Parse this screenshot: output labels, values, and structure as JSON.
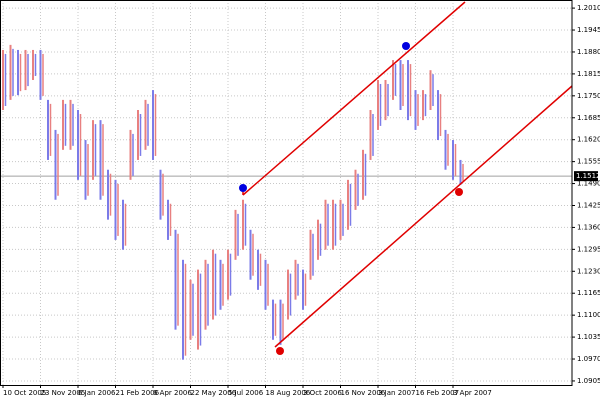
{
  "chart_data": {
    "type": "range-bar",
    "categories": [
      "10 Oct 2005",
      null,
      null,
      null,
      null,
      "23 Nov 2005",
      null,
      null,
      null,
      null,
      "6 Jan 2006",
      null,
      null,
      null,
      null,
      "21 Feb 2006",
      null,
      null,
      null,
      null,
      "6 Apr 2006",
      null,
      null,
      null,
      null,
      "22 May 2006",
      null,
      null,
      null,
      null,
      "5 Jul 2006",
      null,
      null,
      null,
      null,
      "18 Aug 2006",
      null,
      null,
      null,
      null,
      "3 Oct 2006",
      null,
      null,
      null,
      null,
      "16 Nov 2006",
      null,
      null,
      null,
      null,
      "3 Jan 2007",
      null,
      null,
      null,
      null,
      "16 Feb 2007",
      null,
      null,
      null,
      null,
      "3 Apr 2007",
      null
    ],
    "highs": [
      1.1886,
      1.1901,
      1.1886,
      1.1886,
      1.1886,
      1.1886,
      1.1738,
      1.1649,
      1.1738,
      1.1738,
      1.1708,
      1.1619,
      1.1678,
      1.1678,
      1.1531,
      1.1501,
      1.1442,
      1.1649,
      1.1708,
      1.1738,
      1.1767,
      1.1531,
      1.1442,
      1.1353,
      1.1264,
      1.1205,
      1.1235,
      1.1264,
      1.1294,
      1.1264,
      1.1294,
      1.1412,
      1.1442,
      1.1353,
      1.1294,
      1.1264,
      1.1146,
      1.1146,
      1.1235,
      1.1264,
      1.1235,
      1.1353,
      1.1383,
      1.1442,
      1.1442,
      1.1442,
      1.1501,
      1.1531,
      1.159,
      1.1708,
      1.1797,
      1.1797,
      1.1856,
      1.1856,
      1.1856,
      1.1767,
      1.1767,
      1.1826,
      1.1767,
      1.1649,
      1.1619,
      1.156
    ],
    "lows": [
      1.1708,
      1.1738,
      1.1752,
      1.1767,
      1.1797,
      1.1738,
      1.156,
      1.1442,
      1.159,
      1.159,
      1.1501,
      1.1442,
      1.1501,
      1.1442,
      1.1383,
      1.1323,
      1.1294,
      1.1501,
      1.156,
      1.159,
      1.156,
      1.1383,
      1.1323,
      1.1057,
      1.0968,
      1.1027,
      1.0998,
      1.1057,
      1.1087,
      1.1116,
      1.1146,
      1.1264,
      1.1294,
      1.1205,
      1.1175,
      1.1116,
      1.1027,
      1.1012,
      1.1087,
      1.1146,
      1.1116,
      1.1205,
      1.1264,
      1.1294,
      1.1294,
      1.1323,
      1.1353,
      1.1412,
      1.1442,
      1.156,
      1.1649,
      1.1678,
      1.1738,
      1.1708,
      1.1678,
      1.1649,
      1.1678,
      1.1708,
      1.1619,
      1.1531,
      1.1501,
      1.1486
    ],
    "up_color": "#e88080",
    "down_color": "#7b7be8",
    "last_price": 1.1512,
    "ylim": [
      1.0893,
      1.2034
    ],
    "yticks": [
      {
        "value": 1.201,
        "label": "1.2010"
      },
      1.1945,
      {
        "value": 1.188,
        "label": "1.1880"
      },
      1.1815,
      {
        "value": 1.175,
        "label": "1.1750"
      },
      1.1685,
      {
        "value": 1.162,
        "label": "1.1620"
      },
      1.1555,
      {
        "value": 1.149,
        "label": "1.1490"
      },
      1.1425,
      {
        "value": 1.136,
        "label": "1.1360"
      },
      1.1295,
      {
        "value": 1.123,
        "label": "1.1230"
      },
      1.1165,
      {
        "value": 1.11,
        "label": "1.1100"
      },
      1.1035,
      {
        "value": 1.097,
        "label": "1.0970"
      },
      1.0905
    ],
    "grid": true
  }
}
